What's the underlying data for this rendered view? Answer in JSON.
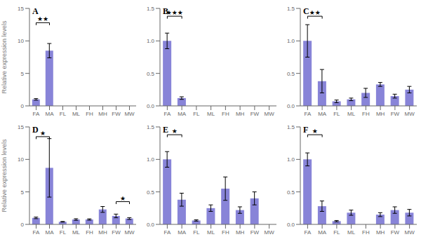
{
  "chart_data": [
    {
      "type": "bar",
      "title": "A",
      "y_label": "Relative expression levels",
      "categories": [
        "FA",
        "MA",
        "FL",
        "ML",
        "FH",
        "MH",
        "FW",
        "MW"
      ],
      "values": [
        1.0,
        8.5,
        0.0,
        0.0,
        0.0,
        0.0,
        0.0,
        0.0
      ],
      "errors": [
        0.12,
        1.1,
        0.0,
        0.0,
        0.0,
        0.0,
        0.0,
        0.0
      ],
      "color": "#8884d8",
      "ylim": [
        0,
        15
      ],
      "yticks": [
        0,
        5,
        10,
        15
      ],
      "annotations": [
        {
          "text": "★★",
          "x1": "FA",
          "x2": "MA",
          "y": 12.8
        }
      ]
    },
    {
      "type": "bar",
      "title": "B",
      "categories": [
        "FA",
        "MA",
        "FL",
        "ML",
        "FH",
        "MH",
        "FW",
        "MW"
      ],
      "values": [
        1.0,
        0.12,
        0.0,
        0.0,
        0.0,
        0.0,
        0.0,
        0.0
      ],
      "errors": [
        0.12,
        0.02,
        0.0,
        0.0,
        0.0,
        0.0,
        0.0,
        0.0
      ],
      "color": "#8884d8",
      "ylim": [
        0,
        1.5
      ],
      "yticks": [
        {
          "value": 0,
          "label": "0.0"
        },
        0.5,
        {
          "value": 1,
          "label": "1.0"
        },
        1.5
      ],
      "annotations": [
        {
          "text": "★★★",
          "x1": "FA",
          "x2": "MA",
          "y": 1.38
        }
      ]
    },
    {
      "type": "bar",
      "title": "C",
      "categories": [
        "FA",
        "MA",
        "FL",
        "ML",
        "FH",
        "MH",
        "FW",
        "MW"
      ],
      "values": [
        1.0,
        0.38,
        0.07,
        0.1,
        0.2,
        0.33,
        0.15,
        0.25
      ],
      "errors": [
        0.25,
        0.18,
        0.02,
        0.02,
        0.07,
        0.03,
        0.03,
        0.05
      ],
      "color": "#8884d8",
      "ylim": [
        0,
        1.5
      ],
      "yticks": [
        {
          "value": 0,
          "label": "0.0"
        },
        0.5,
        {
          "value": 1,
          "label": "1.0"
        },
        1.5
      ],
      "annotations": [
        {
          "text": "★★",
          "x1": "FA",
          "x2": "MA",
          "y": 1.38
        }
      ]
    },
    {
      "type": "bar",
      "title": "D",
      "y_label": "Relative expression levels",
      "categories": [
        "FA",
        "MA",
        "FL",
        "ML",
        "FH",
        "MH",
        "FW",
        "MW"
      ],
      "values": [
        1.0,
        8.7,
        0.4,
        0.75,
        0.75,
        2.3,
        1.3,
        0.9
      ],
      "errors": [
        0.12,
        4.5,
        0.05,
        0.12,
        0.1,
        0.45,
        0.28,
        0.14
      ],
      "color": "#8884d8",
      "ylim": [
        0,
        15
      ],
      "yticks": [
        0,
        5,
        10,
        15
      ],
      "annotations": [
        {
          "text": "★",
          "x1": "FA",
          "x2": "MA",
          "y": 13.5
        },
        {
          "text": "★",
          "x1": "FW",
          "x2": "MW",
          "y": 3.5
        }
      ]
    },
    {
      "type": "bar",
      "title": "E",
      "categories": [
        "FA",
        "MA",
        "FL",
        "ML",
        "FH",
        "MH",
        "FW",
        "MW"
      ],
      "values": [
        1.0,
        0.38,
        0.06,
        0.25,
        0.55,
        0.22,
        0.4,
        0.0
      ],
      "errors": [
        0.12,
        0.1,
        0.01,
        0.05,
        0.18,
        0.05,
        0.1,
        0.0
      ],
      "color": "#8884d8",
      "ylim": [
        0,
        1.5
      ],
      "yticks": [
        {
          "value": 0,
          "label": "0.0"
        },
        0.5,
        {
          "value": 1,
          "label": "1.0"
        },
        1.5
      ],
      "annotations": [
        {
          "text": "★",
          "x1": "FA",
          "x2": "MA",
          "y": 1.38
        }
      ]
    },
    {
      "type": "bar",
      "title": "F",
      "categories": [
        "FA",
        "MA",
        "FL",
        "ML",
        "FH",
        "MH",
        "FW",
        "MW"
      ],
      "values": [
        1.0,
        0.28,
        0.05,
        0.18,
        0.0,
        0.15,
        0.22,
        0.18
      ],
      "errors": [
        0.1,
        0.08,
        0.01,
        0.04,
        0.0,
        0.03,
        0.05,
        0.05
      ],
      "color": "#8884d8",
      "ylim": [
        0,
        1.5
      ],
      "yticks": [
        {
          "value": 0,
          "label": "0.0"
        },
        0.5,
        {
          "value": 1,
          "label": "1.0"
        },
        1.5
      ],
      "annotations": [
        {
          "text": "★",
          "x1": "FA",
          "x2": "MA",
          "y": 1.38
        }
      ]
    }
  ]
}
